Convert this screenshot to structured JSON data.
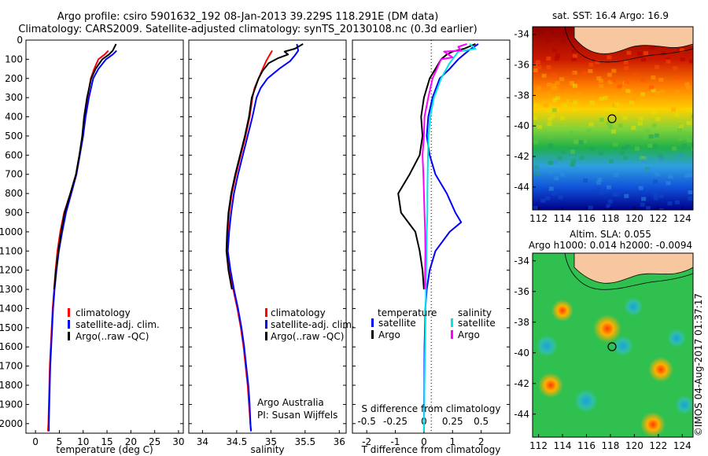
{
  "header": {
    "title_line1": "Argo profile: csiro 5901632_192 08-Jan-2013 39.229S 118.291E (DM data)",
    "title_line2": "Climatology: CARS2009. Satellite-adjusted climatology: synTS_20130108.nc (0.3d earlier)"
  },
  "colors": {
    "climatology": "#ff0000",
    "satellite": "#0000ff",
    "argo": "#000000",
    "sat_salinity": "#00e5e5",
    "argo_salinity": "#ff00ff",
    "land": "#f7c8a0"
  },
  "chart_data": [
    {
      "type": "line",
      "xlabel": "temperature (deg C)",
      "xticks": [
        "0",
        "5",
        "10",
        "15",
        "20",
        "25",
        "30"
      ],
      "xlim": [
        -2,
        31
      ],
      "ylim": [
        0,
        2050
      ],
      "yticks": [
        "0",
        "100",
        "200",
        "300",
        "400",
        "500",
        "600",
        "700",
        "800",
        "900",
        "1000",
        "1100",
        "1200",
        "1300",
        "1400",
        "1500",
        "1600",
        "1700",
        "1800",
        "1900",
        "2000"
      ],
      "legend": [
        "climatology",
        "satellite-adj. clim.",
        "Argo(..raw -QC)"
      ],
      "series": [
        {
          "name": "climatology",
          "color": "#ff0000",
          "points": [
            [
              15.3,
              55
            ],
            [
              14.5,
              75
            ],
            [
              13.2,
              100
            ],
            [
              12.3,
              150
            ],
            [
              11.6,
              200
            ],
            [
              10.9,
              300
            ],
            [
              10.3,
              400
            ],
            [
              9.9,
              500
            ],
            [
              9.2,
              600
            ],
            [
              8.5,
              700
            ],
            [
              7.3,
              800
            ],
            [
              6.0,
              900
            ],
            [
              5.2,
              1000
            ],
            [
              4.6,
              1100
            ],
            [
              4.2,
              1200
            ],
            [
              3.9,
              1300
            ],
            [
              3.6,
              1400
            ],
            [
              3.4,
              1500
            ],
            [
              3.2,
              1600
            ],
            [
              3.0,
              1700
            ],
            [
              2.9,
              1800
            ],
            [
              2.8,
              1900
            ],
            [
              2.7,
              2000
            ],
            [
              2.6,
              2040
            ]
          ]
        },
        {
          "name": "satellite-adj. clim.",
          "color": "#0000ff",
          "points": [
            [
              17.0,
              55
            ],
            [
              16.2,
              75
            ],
            [
              14.8,
              100
            ],
            [
              13.2,
              150
            ],
            [
              12.1,
              200
            ],
            [
              11.2,
              300
            ],
            [
              10.5,
              400
            ],
            [
              10.0,
              500
            ],
            [
              9.3,
              600
            ],
            [
              8.6,
              700
            ],
            [
              7.5,
              800
            ],
            [
              6.4,
              900
            ],
            [
              5.6,
              1000
            ],
            [
              4.9,
              1100
            ],
            [
              4.4,
              1200
            ],
            [
              4.0,
              1300
            ],
            [
              3.7,
              1400
            ],
            [
              3.5,
              1500
            ],
            [
              3.3,
              1600
            ],
            [
              3.1,
              1700
            ],
            [
              3.0,
              1800
            ],
            [
              2.9,
              1900
            ],
            [
              2.8,
              2000
            ],
            [
              2.8,
              2040
            ]
          ]
        },
        {
          "name": "Argo(..raw -QC)",
          "color": "#000000",
          "points": [
            [
              16.9,
              20
            ],
            [
              16.5,
              40
            ],
            [
              16.2,
              55
            ],
            [
              15.4,
              75
            ],
            [
              14.0,
              100
            ],
            [
              12.6,
              150
            ],
            [
              11.7,
              200
            ],
            [
              10.8,
              300
            ],
            [
              10.2,
              400
            ],
            [
              9.8,
              500
            ],
            [
              9.2,
              600
            ],
            [
              8.5,
              700
            ],
            [
              7.3,
              800
            ],
            [
              6.1,
              900
            ],
            [
              5.4,
              1000
            ],
            [
              4.8,
              1100
            ],
            [
              4.3,
              1200
            ],
            [
              3.9,
              1300
            ]
          ]
        }
      ]
    },
    {
      "type": "line",
      "xlabel": "salinity",
      "xticks": [
        "34",
        "34.5",
        "35",
        "35.5",
        "36"
      ],
      "xlim": [
        33.8,
        36.1
      ],
      "ylim": [
        0,
        2050
      ],
      "legend": [
        "climatology",
        "satellite-adj. clim.",
        "Argo(..raw -QC)"
      ],
      "annotation_line1": "Argo Australia",
      "annotation_line2": "PI: Susan Wijffels",
      "series": [
        {
          "name": "climatology",
          "color": "#ff0000",
          "points": [
            [
              35.02,
              55
            ],
            [
              34.97,
              85
            ],
            [
              34.93,
              110
            ],
            [
              34.88,
              150
            ],
            [
              34.82,
              200
            ],
            [
              34.76,
              250
            ],
            [
              34.73,
              300
            ],
            [
              34.69,
              400
            ],
            [
              34.63,
              500
            ],
            [
              34.56,
              600
            ],
            [
              34.49,
              700
            ],
            [
              34.43,
              800
            ],
            [
              34.39,
              900
            ],
            [
              34.37,
              1000
            ],
            [
              34.36,
              1100
            ],
            [
              34.4,
              1200
            ],
            [
              34.45,
              1300
            ],
            [
              34.51,
              1400
            ],
            [
              34.56,
              1500
            ],
            [
              34.6,
              1600
            ],
            [
              34.63,
              1700
            ],
            [
              34.66,
              1800
            ],
            [
              34.68,
              1900
            ],
            [
              34.7,
              2000
            ],
            [
              34.71,
              2040
            ]
          ]
        },
        {
          "name": "satellite-adj. clim.",
          "color": "#0000ff",
          "points": [
            [
              35.38,
              20
            ],
            [
              35.4,
              55
            ],
            [
              35.35,
              80
            ],
            [
              35.28,
              110
            ],
            [
              35.12,
              150
            ],
            [
              34.95,
              200
            ],
            [
              34.85,
              250
            ],
            [
              34.79,
              300
            ],
            [
              34.73,
              400
            ],
            [
              34.66,
              500
            ],
            [
              34.59,
              600
            ],
            [
              34.52,
              700
            ],
            [
              34.46,
              800
            ],
            [
              34.42,
              900
            ],
            [
              34.39,
              1000
            ],
            [
              34.37,
              1100
            ],
            [
              34.41,
              1200
            ],
            [
              34.46,
              1300
            ],
            [
              34.52,
              1400
            ],
            [
              34.57,
              1500
            ],
            [
              34.61,
              1600
            ],
            [
              34.64,
              1700
            ],
            [
              34.67,
              1800
            ],
            [
              34.69,
              1900
            ],
            [
              34.7,
              2000
            ],
            [
              34.71,
              2040
            ]
          ]
        },
        {
          "name": "Argo(..raw -QC)",
          "color": "#000000",
          "points": [
            [
              35.47,
              20
            ],
            [
              35.35,
              45
            ],
            [
              35.2,
              60
            ],
            [
              35.25,
              75
            ],
            [
              35.1,
              95
            ],
            [
              34.97,
              120
            ],
            [
              34.88,
              160
            ],
            [
              34.82,
              200
            ],
            [
              34.76,
              260
            ],
            [
              34.72,
              300
            ],
            [
              34.68,
              400
            ],
            [
              34.62,
              500
            ],
            [
              34.55,
              600
            ],
            [
              34.48,
              700
            ],
            [
              34.42,
              800
            ],
            [
              34.38,
              900
            ],
            [
              34.36,
              1000
            ],
            [
              34.35,
              1100
            ],
            [
              34.38,
              1200
            ],
            [
              34.43,
              1300
            ]
          ]
        }
      ]
    },
    {
      "type": "line",
      "xlabel": "T difference from climatology",
      "xticks": [
        "-2",
        "-1",
        "0",
        "1",
        "2"
      ],
      "xlim": [
        -2.5,
        3.0
      ],
      "secondary_xlabel": "S difference from climatology",
      "secondary_xticks": [
        "-0.5",
        "-0.25",
        "0",
        "0.25",
        "0.5"
      ],
      "ylim": [
        0,
        2050
      ],
      "legend_headers": [
        "temperature",
        "salinity"
      ],
      "legend": [
        "satellite",
        "Argo",
        "satellite",
        "Argo"
      ],
      "series": [
        {
          "name": "satellite",
          "color": "#0000ff",
          "points": [
            [
              1.9,
              20
            ],
            [
              1.6,
              50
            ],
            [
              1.2,
              100
            ],
            [
              0.9,
              150
            ],
            [
              0.55,
              200
            ],
            [
              0.3,
              300
            ],
            [
              0.15,
              400
            ],
            [
              0.1,
              500
            ],
            [
              0.2,
              600
            ],
            [
              0.4,
              700
            ],
            [
              0.8,
              800
            ],
            [
              1.1,
              900
            ],
            [
              1.3,
              950
            ],
            [
              0.9,
              1000
            ],
            [
              0.4,
              1100
            ],
            [
              0.2,
              1200
            ],
            [
              0.1,
              1300
            ],
            [
              0.05,
              1400
            ],
            [
              0.02,
              1600
            ],
            [
              0.0,
              2040
            ]
          ]
        },
        {
          "name": "Argo",
          "color": "#000000",
          "points": [
            [
              1.8,
              20
            ],
            [
              1.4,
              45
            ],
            [
              1.0,
              60
            ],
            [
              0.8,
              75
            ],
            [
              0.6,
              100
            ],
            [
              0.4,
              150
            ],
            [
              0.2,
              200
            ],
            [
              0.0,
              300
            ],
            [
              -0.1,
              400
            ],
            [
              -0.05,
              500
            ],
            [
              -0.15,
              600
            ],
            [
              -0.5,
              700
            ],
            [
              -0.9,
              800
            ],
            [
              -0.8,
              900
            ],
            [
              -0.3,
              1000
            ],
            [
              -0.15,
              1100
            ],
            [
              -0.05,
              1200
            ],
            [
              0.0,
              1300
            ]
          ]
        },
        {
          "name": "satellite",
          "color": "#00e5e5",
          "points": [
            [
              1.6,
              20
            ],
            [
              1.8,
              45
            ],
            [
              1.2,
              60
            ],
            [
              1.1,
              80
            ],
            [
              0.9,
              120
            ],
            [
              0.6,
              200
            ],
            [
              0.35,
              300
            ],
            [
              0.22,
              400
            ],
            [
              0.16,
              500
            ],
            [
              0.14,
              600
            ],
            [
              0.13,
              700
            ],
            [
              0.12,
              800
            ],
            [
              0.12,
              900
            ],
            [
              0.1,
              1000
            ],
            [
              0.08,
              1200
            ],
            [
              0.05,
              1500
            ],
            [
              0.02,
              1800
            ],
            [
              0.0,
              2040
            ]
          ]
        },
        {
          "name": "Argo",
          "color": "#ff00ff",
          "points": [
            [
              1.5,
              20
            ],
            [
              1.2,
              35
            ],
            [
              1.3,
              55
            ],
            [
              0.7,
              60
            ],
            [
              1.0,
              90
            ],
            [
              0.6,
              100
            ],
            [
              0.45,
              150
            ],
            [
              0.3,
              200
            ],
            [
              0.15,
              300
            ],
            [
              0.02,
              400
            ],
            [
              0.0,
              500
            ],
            [
              -0.05,
              600
            ],
            [
              -0.02,
              700
            ],
            [
              0.0,
              800
            ],
            [
              0.02,
              900
            ],
            [
              0.04,
              1000
            ],
            [
              0.05,
              1100
            ],
            [
              0.04,
              1200
            ],
            [
              0.03,
              1300
            ]
          ]
        }
      ]
    }
  ],
  "map_top": {
    "title": "sat. SST: 16.4  Argo: 16.9",
    "xticks": [
      "112",
      "114",
      "116",
      "118",
      "120",
      "122",
      "124"
    ],
    "yticks": [
      "-34",
      "-36",
      "-38",
      "-40",
      "-42",
      "-44"
    ]
  },
  "map_bottom": {
    "title_line1": "Altim. SLA: 0.055",
    "title_line2": "Argo h1000: 0.014  h2000: -0.0094",
    "xticks": [
      "112",
      "114",
      "116",
      "118",
      "120",
      "122",
      "124"
    ],
    "yticks": [
      "-34",
      "-36",
      "-38",
      "-40",
      "-42",
      "-44"
    ]
  },
  "credit": "©IMOS 04-Aug-2017 01:37:17"
}
